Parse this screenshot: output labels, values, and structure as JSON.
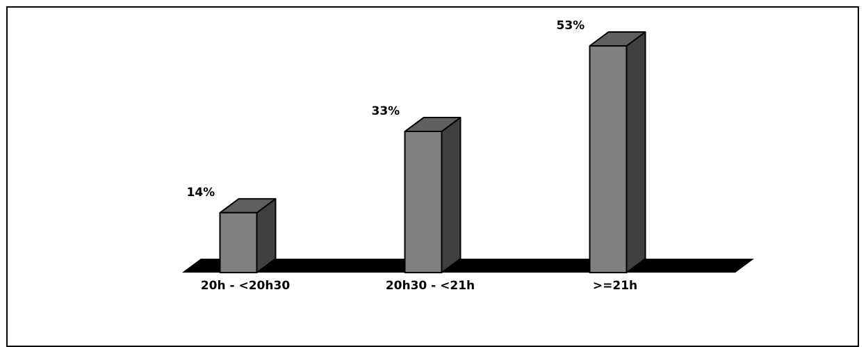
{
  "chart_data": {
    "type": "bar",
    "title": "",
    "xlabel": "",
    "ylabel": "",
    "categories": [
      "20h - <20h30",
      "20h30 - <21h",
      ">=21h"
    ],
    "values": [
      14,
      33,
      53
    ],
    "value_labels": [
      "14%",
      "33%",
      "53%"
    ],
    "unit": "%",
    "ylim": [
      0,
      53
    ],
    "grid": false,
    "legend": "none",
    "style": "3d-columns"
  },
  "colors": {
    "bar_front": "#808080",
    "bar_top": "#5f5f5f",
    "bar_side": "#404040",
    "floor": "#000000",
    "outline": "#000000"
  }
}
